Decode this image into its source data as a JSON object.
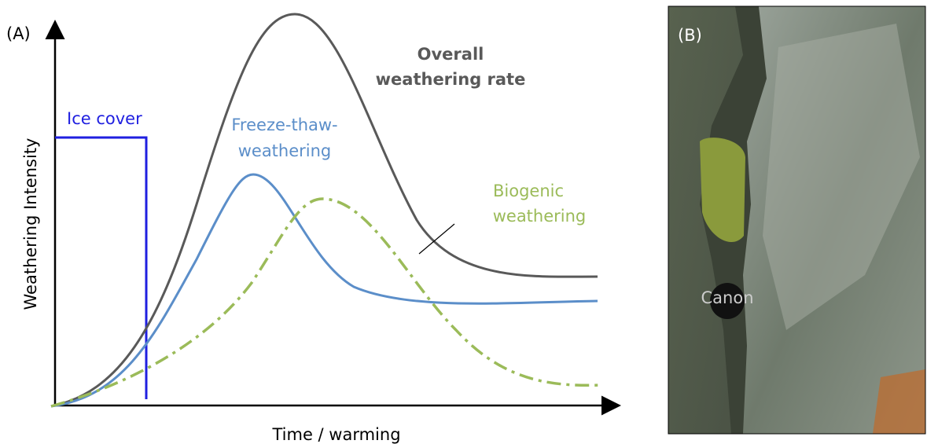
{
  "panel_a": {
    "label": "(A)",
    "y_axis_label": "Weathering Intensity",
    "x_axis_label": "Time / warming",
    "ice_cover": "Ice cover",
    "freeze_thaw": [
      "Freeze-thaw-",
      "weathering"
    ],
    "overall": [
      "Overall",
      "weathering rate"
    ],
    "biogenic": [
      "Biogenic",
      "weathering"
    ]
  },
  "panel_b": {
    "label": "(B)",
    "lens_cap": "Canon"
  }
}
